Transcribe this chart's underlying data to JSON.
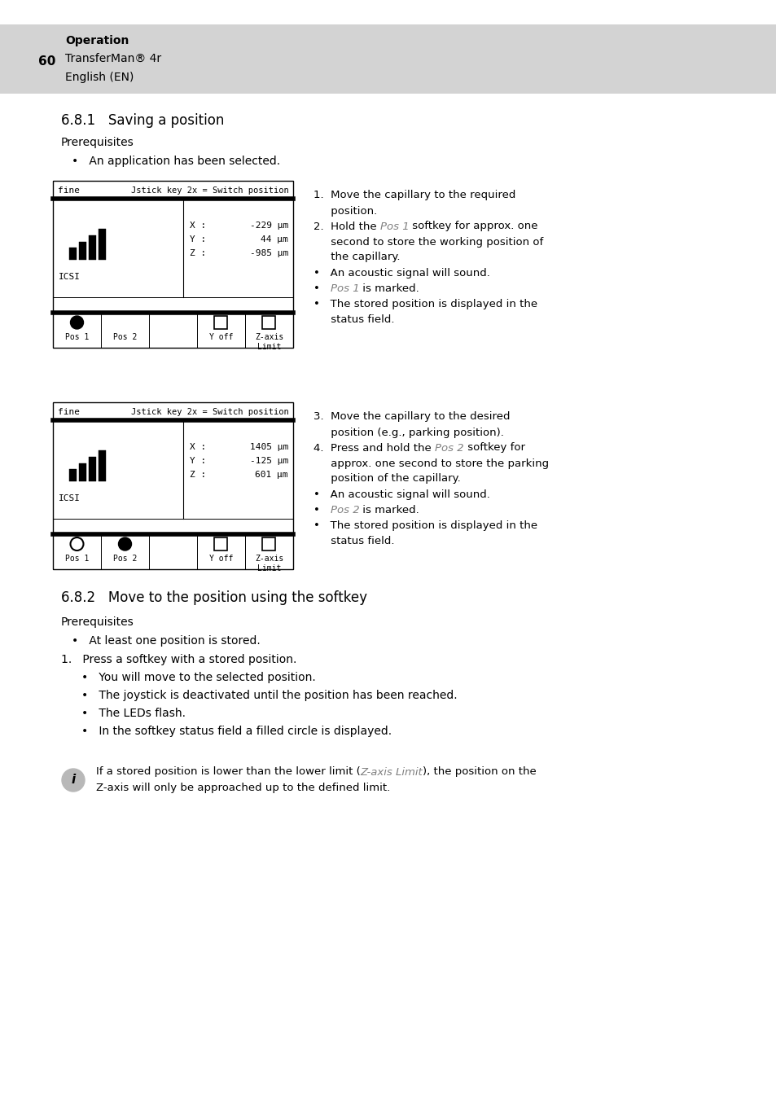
{
  "page_num": "60",
  "header_section": "Operation",
  "header_product": "TransferMan® 4r",
  "header_lang": "English (EN)",
  "section1_title": "6.8.1   Saving a position",
  "section1_prereq": "Prerequisites",
  "section1_bullet": "•   An application has been selected.",
  "section2_title": "6.8.2   Move to the position using the softkey",
  "section2_prereq": "Prerequisites",
  "section2_bullet1": "•   At least one position is stored.",
  "section2_step1": "1.   Press a softkey with a stored position.",
  "section2_subbullets": [
    "•   You will move to the selected position.",
    "•   The joystick is deactivated until the position has been reached.",
    "•   The LEDs flash.",
    "•   In the softkey status field a filled circle is displayed."
  ],
  "info_text_part1": "If a stored position is lower than the lower limit (",
  "info_text_italic": "Z-axis Limit",
  "info_text_part2": "), the position on the",
  "info_text_line2": "Z-axis will only be approached up to the defined limit.",
  "bg_color": "#ffffff",
  "header_bg": "#d3d3d3",
  "screen1_xval": "-229 µm",
  "screen1_yval": "44 µm",
  "screen1_zval": "-985 µm",
  "screen2_xval": "1405 µm",
  "screen2_yval": "-125 µm",
  "screen2_zval": "601 µm"
}
